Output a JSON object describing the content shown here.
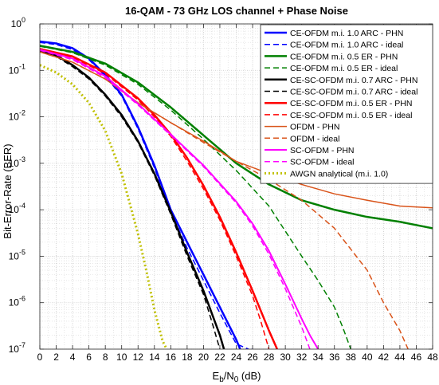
{
  "chart_data": {
    "type": "line",
    "title": "16-QAM - 73 GHz LOS channel + Phase Noise",
    "xlabel": {
      "main": "E",
      "sub1": "b",
      "mid": "/N",
      "sub2": "0",
      "tail": " (dB)"
    },
    "ylabel": "Bit-Error-Rate (BER)",
    "x_ticks": [
      0,
      2,
      4,
      6,
      8,
      10,
      12,
      14,
      16,
      18,
      20,
      22,
      24,
      26,
      28,
      30,
      32,
      34,
      36,
      38,
      40,
      42,
      44,
      46,
      48
    ],
    "y_ticks": [
      {
        "exp": 0,
        "base": "10",
        "sup": "0"
      },
      {
        "exp": -1,
        "base": "10",
        "sup": "-1"
      },
      {
        "exp": -2,
        "base": "10",
        "sup": "-2"
      },
      {
        "exp": -3,
        "base": "10",
        "sup": "-3"
      },
      {
        "exp": -4,
        "base": "10",
        "sup": "-4"
      },
      {
        "exp": -5,
        "base": "10",
        "sup": "-5"
      },
      {
        "exp": -6,
        "base": "10",
        "sup": "-6"
      },
      {
        "exp": -7,
        "base": "10",
        "sup": "-7"
      }
    ],
    "xlim": [
      0,
      48
    ],
    "ylim": [
      1e-07,
      1
    ],
    "yscale": "log",
    "grid": true,
    "legend_position": "top-right",
    "series": [
      {
        "name": "CE-OFDM m.i. 1.0 ARC - PHN",
        "color": "#0000ff",
        "style": "solid",
        "width": 2.5,
        "x": [
          0,
          2,
          4,
          6,
          8,
          10,
          12,
          14,
          16,
          18,
          20,
          22,
          24,
          25,
          26
        ],
        "y": [
          0.42,
          0.38,
          0.3,
          0.18,
          0.08,
          0.03,
          0.006,
          0.0009,
          0.0001,
          2e-05,
          4e-06,
          8e-07,
          1.6e-07,
          6e-08,
          1e-07
        ]
      },
      {
        "name": "CE-OFDM m.i. 1.0 ARC - ideal",
        "color": "#0000ff",
        "style": "dashed",
        "width": 1.5,
        "x": [
          0,
          2,
          4,
          6,
          8,
          10,
          12,
          14,
          16,
          18,
          20,
          22,
          24,
          25.5
        ],
        "y": [
          0.4,
          0.36,
          0.28,
          0.17,
          0.075,
          0.028,
          0.0055,
          0.0008,
          9e-05,
          1.5e-05,
          3e-06,
          6e-07,
          1.3e-07,
          1e-07
        ]
      },
      {
        "name": "CE-OFDM m.i. 0.5 ER - PHN",
        "color": "#008000",
        "style": "solid",
        "width": 2.5,
        "x": [
          0,
          4,
          8,
          12,
          16,
          20,
          24,
          28,
          32,
          36,
          40,
          44,
          48
        ],
        "y": [
          0.34,
          0.25,
          0.14,
          0.055,
          0.016,
          0.004,
          0.001,
          0.00035,
          0.00016,
          0.0001,
          7e-05,
          5.5e-05,
          4e-05
        ]
      },
      {
        "name": "CE-OFDM m.i. 0.5 ER - ideal",
        "color": "#008000",
        "style": "dashed",
        "width": 1.5,
        "x": [
          0,
          4,
          8,
          12,
          16,
          20,
          24,
          28,
          32,
          34,
          36,
          37,
          38
        ],
        "y": [
          0.33,
          0.24,
          0.13,
          0.05,
          0.014,
          0.0033,
          0.0007,
          0.00012,
          1e-05,
          3e-06,
          8e-07,
          3e-07,
          1e-07
        ]
      },
      {
        "name": "CE-SC-OFDM m.i. 0.7 ARC - PHN",
        "color": "#000000",
        "style": "solid",
        "width": 2.5,
        "x": [
          0,
          2,
          4,
          6,
          8,
          10,
          12,
          14,
          16,
          18,
          20,
          21,
          22,
          22.5
        ],
        "y": [
          0.27,
          0.21,
          0.13,
          0.07,
          0.03,
          0.011,
          0.003,
          0.0006,
          9e-05,
          1.2e-05,
          1.8e-06,
          6e-07,
          2e-07,
          1e-07
        ]
      },
      {
        "name": "CE-SC-OFDM m.i. 0.7 ARC - ideal",
        "color": "#000000",
        "style": "dashed",
        "width": 1.5,
        "x": [
          0,
          2,
          4,
          6,
          8,
          10,
          12,
          14,
          16,
          18,
          20,
          21,
          22
        ],
        "y": [
          0.26,
          0.2,
          0.12,
          0.065,
          0.028,
          0.01,
          0.0028,
          0.00055,
          8e-05,
          1e-05,
          1.5e-06,
          4e-07,
          1e-07
        ]
      },
      {
        "name": "CE-SC-OFDM m.i. 0.5 ER - PHN",
        "color": "#ff0000",
        "style": "solid",
        "width": 2.5,
        "x": [
          0,
          4,
          8,
          12,
          14,
          16,
          18,
          20,
          22,
          24,
          26,
          28,
          29
        ],
        "y": [
          0.29,
          0.2,
          0.09,
          0.025,
          0.011,
          0.0042,
          0.0013,
          0.00033,
          7e-05,
          1.2e-05,
          1.8e-06,
          2.5e-07,
          1e-07
        ]
      },
      {
        "name": "CE-SC-OFDM m.i. 0.5 ER - ideal",
        "color": "#ff0000",
        "style": "dashed",
        "width": 1.5,
        "x": [
          0,
          4,
          8,
          12,
          14,
          16,
          18,
          20,
          22,
          24,
          26,
          27,
          28
        ],
        "y": [
          0.28,
          0.19,
          0.085,
          0.023,
          0.01,
          0.0038,
          0.0011,
          0.00028,
          6e-05,
          1e-05,
          1.4e-06,
          4e-07,
          1e-07
        ]
      },
      {
        "name": "OFDM - PHN",
        "color": "#d95319",
        "style": "solid",
        "width": 1.5,
        "x": [
          0,
          4,
          8,
          12,
          16,
          20,
          24,
          28,
          32,
          36,
          40,
          44,
          48
        ],
        "y": [
          0.25,
          0.15,
          0.065,
          0.02,
          0.0075,
          0.003,
          0.0011,
          0.0006,
          0.00035,
          0.00022,
          0.00016,
          0.00012,
          0.00011
        ]
      },
      {
        "name": "OFDM - ideal",
        "color": "#d95319",
        "style": "dashed",
        "width": 1.5,
        "x": [
          0,
          4,
          8,
          12,
          16,
          20,
          24,
          28,
          32,
          36,
          40,
          42,
          44,
          45
        ],
        "y": [
          0.25,
          0.15,
          0.065,
          0.02,
          0.0075,
          0.0028,
          0.0011,
          0.00045,
          0.00016,
          4e-05,
          5e-06,
          1e-06,
          2.5e-07,
          1e-07
        ]
      },
      {
        "name": "SC-OFDM - PHN",
        "color": "#ff00ff",
        "style": "solid",
        "width": 2,
        "x": [
          0,
          4,
          8,
          12,
          16,
          20,
          24,
          26,
          28,
          30,
          32,
          33,
          34
        ],
        "y": [
          0.28,
          0.18,
          0.075,
          0.019,
          0.0042,
          0.0009,
          0.00015,
          5e-05,
          1.3e-05,
          2.5e-06,
          4.5e-07,
          2e-07,
          1e-07
        ]
      },
      {
        "name": "SC-OFDM - ideal",
        "color": "#ff00ff",
        "style": "dashed",
        "width": 1.5,
        "x": [
          0,
          4,
          8,
          12,
          16,
          20,
          24,
          26,
          28,
          30,
          32,
          33
        ],
        "y": [
          0.27,
          0.17,
          0.07,
          0.018,
          0.004,
          0.00085,
          0.00014,
          4.5e-05,
          1.1e-05,
          2e-06,
          3e-07,
          1e-07
        ]
      },
      {
        "name": "AWGN analytical (m.i. 1.0)",
        "color": "#c0c000",
        "style": "dotted",
        "width": 3,
        "x": [
          0,
          2,
          4,
          6,
          8,
          10,
          12,
          13,
          14,
          15,
          15.5
        ],
        "y": [
          0.13,
          0.09,
          0.05,
          0.02,
          0.005,
          0.0006,
          3e-05,
          5e-06,
          7e-07,
          1.5e-07,
          1e-07
        ]
      }
    ]
  }
}
